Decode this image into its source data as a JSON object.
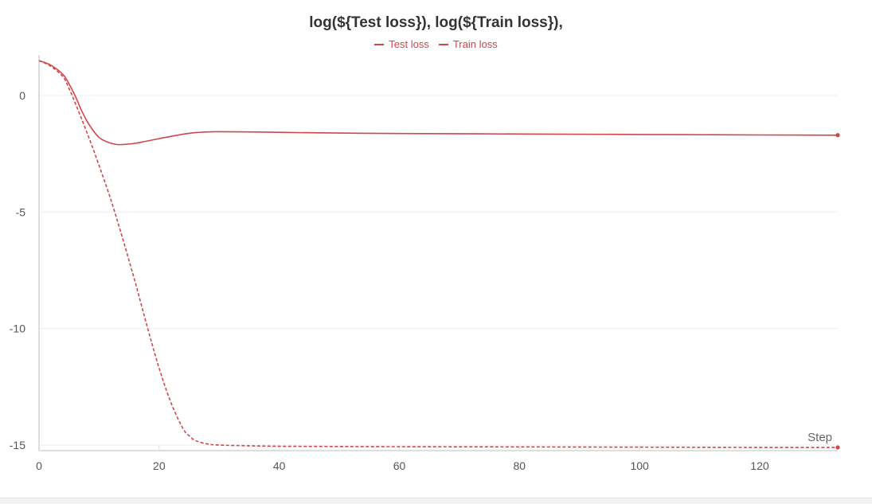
{
  "chart_data": {
    "type": "line",
    "title": "log(${Test loss}), log(${Train loss}),",
    "xlabel": "Step",
    "ylabel": "",
    "xlim": [
      0,
      133
    ],
    "ylim": [
      -15.1,
      1.6
    ],
    "x_ticks": [
      0,
      20,
      40,
      60,
      80,
      100,
      120
    ],
    "y_ticks": [
      0,
      -5,
      -10,
      -15
    ],
    "grid": true,
    "legend_position": "top-center",
    "colors": {
      "series": "#d0464b",
      "grid": "#eeeeee",
      "axis": "#dddddd"
    },
    "series": [
      {
        "name": "Test loss",
        "style": "solid",
        "x": [
          0,
          2,
          4,
          5,
          6,
          7,
          8,
          9,
          10,
          11,
          12,
          13,
          14,
          16,
          18,
          20,
          22,
          25,
          28,
          30,
          35,
          40,
          50,
          60,
          80,
          100,
          120,
          133
        ],
        "y": [
          1.5,
          1.3,
          0.9,
          0.5,
          0.0,
          -0.6,
          -1.1,
          -1.5,
          -1.8,
          -1.95,
          -2.05,
          -2.1,
          -2.1,
          -2.05,
          -1.95,
          -1.85,
          -1.75,
          -1.62,
          -1.56,
          -1.55,
          -1.56,
          -1.58,
          -1.61,
          -1.63,
          -1.65,
          -1.67,
          -1.69,
          -1.7
        ]
      },
      {
        "name": "Train loss",
        "style": "dashed",
        "x": [
          0,
          2,
          4,
          5,
          6,
          8,
          10,
          12,
          14,
          16,
          18,
          20,
          22,
          24,
          25,
          26,
          28,
          30,
          35,
          40,
          50,
          60,
          80,
          100,
          120,
          133
        ],
        "y": [
          1.5,
          1.25,
          0.8,
          0.3,
          -0.3,
          -1.6,
          -3.0,
          -4.5,
          -6.2,
          -8.0,
          -9.9,
          -11.7,
          -13.2,
          -14.3,
          -14.6,
          -14.8,
          -14.95,
          -15.0,
          -15.03,
          -15.05,
          -15.06,
          -15.07,
          -15.08,
          -15.09,
          -15.1,
          -15.1
        ]
      }
    ]
  }
}
